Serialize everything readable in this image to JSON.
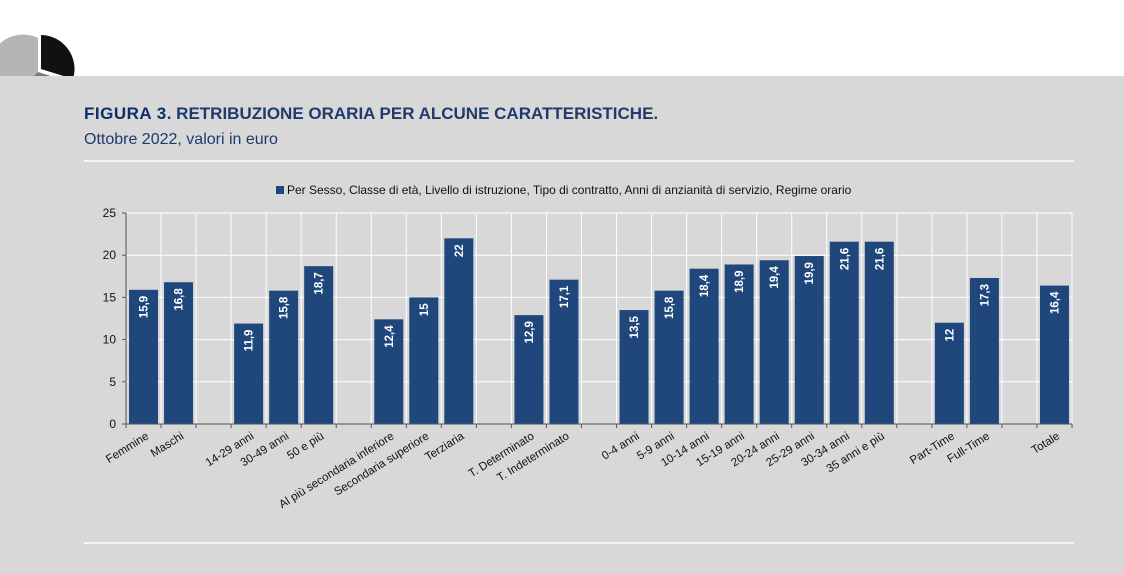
{
  "figure": {
    "label": "FIGURA 3",
    "title": ". RETRIBUZIONE ORARIA PER ALCUNE CARATTERISTICHE.",
    "subtitle": "Ottobre 2022, valori in euro"
  },
  "colors": {
    "bar": "#1f477c",
    "panel": "#d8d8d8",
    "title": "#0c2e6b"
  },
  "chart_data": {
    "type": "bar",
    "legend": "Per Sesso, Classe di età, Livello di istruzione, Tipo di contratto, Anni di anzianità di servizio, Regime orario",
    "legend_position": "top-center",
    "ylim": [
      0,
      25
    ],
    "yticks": [
      "0",
      "5",
      "10",
      "15",
      "20",
      "25"
    ],
    "grid": true,
    "categories": [
      "Femmine",
      "Maschi",
      "",
      "14-29 anni",
      "30-49 anni",
      "50 e più",
      "",
      "Al più secondaria inferiore",
      "Secondaria superiore",
      "Terziaria",
      "",
      "T. Determinato",
      "T. Indeterminato",
      "",
      "0-4 anni",
      "5-9 anni",
      "10-14 anni",
      "15-19 anni",
      "20-24 anni",
      "25-29 anni",
      "30-34 anni",
      "35 anni e più",
      "",
      "Part-Time",
      "Full-Time",
      "",
      "Totale"
    ],
    "values": [
      15.9,
      16.8,
      null,
      11.9,
      15.8,
      18.7,
      null,
      12.4,
      15,
      22,
      null,
      12.9,
      17.1,
      null,
      13.5,
      15.8,
      18.4,
      18.9,
      19.4,
      19.9,
      21.6,
      21.6,
      null,
      12,
      17.3,
      null,
      16.4
    ],
    "labels": [
      "15,9",
      "16,8",
      "",
      "11,9",
      "15,8",
      "18,7",
      "",
      "12,4",
      "15",
      "22",
      "",
      "12,9",
      "17,1",
      "",
      "13,5",
      "15,8",
      "18,4",
      "18,9",
      "19,4",
      "19,9",
      "21,6",
      "21,6",
      "",
      "12",
      "17,3",
      "",
      "16,4"
    ]
  }
}
